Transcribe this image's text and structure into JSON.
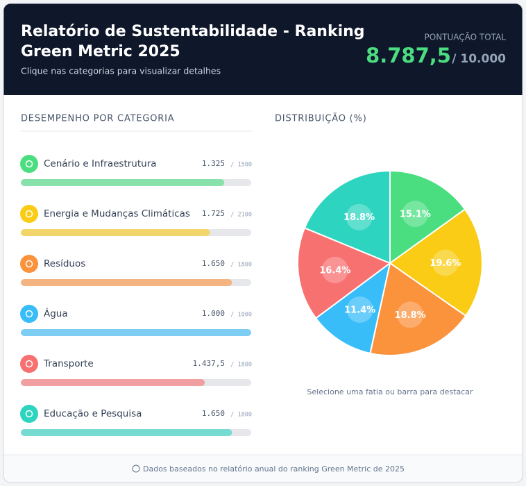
{
  "header": {
    "title_line1": "Relatório de Sustentabilidade - Ranking",
    "title_line2": "Green Metric 2025",
    "subtitle": "Clique nas categorias para visualizar detalhes",
    "total_label": "PONTUAÇÃO TOTAL",
    "total": {
      "value": 8787.5,
      "label": "8.787,5"
    },
    "total_max": {
      "value": 10000,
      "label": "/ 10.000"
    }
  },
  "panel": {
    "title": "DESEMPENHO POR CATEGORIA",
    "categories": [
      {
        "name": "Cenário e Infraestrutura",
        "score": {
          "value": 1325,
          "label": "1.325"
        },
        "max": {
          "value": 1500,
          "label": "/ 1500"
        },
        "color": "#4ade80"
      },
      {
        "name": "Energia e Mudanças Climáticas",
        "score": {
          "value": 1725,
          "label": "1.725"
        },
        "max": {
          "value": 2100,
          "label": "/ 2100"
        },
        "color": "#facc15"
      },
      {
        "name": "Resíduos",
        "score": {
          "value": 1650,
          "label": "1.650"
        },
        "max": {
          "value": 1800,
          "label": "/ 1800"
        },
        "color": "#fb923c"
      },
      {
        "name": "Água",
        "score": {
          "value": 1000,
          "label": "1.000"
        },
        "max": {
          "value": 1000,
          "label": "/ 1000"
        },
        "color": "#38bdf8"
      },
      {
        "name": "Transporte",
        "score": {
          "value": 1437.5,
          "label": "1.437,5"
        },
        "max": {
          "value": 1800,
          "label": "/ 1800"
        },
        "color": "#f87171"
      },
      {
        "name": "Educação e Pesquisa",
        "score": {
          "value": 1650,
          "label": "1.650"
        },
        "max": {
          "value": 1800,
          "label": "/ 1800"
        },
        "color": "#2dd4bf"
      }
    ]
  },
  "chart_data": {
    "type": "pie",
    "title": "DISTRIBUIÇÃO (%)",
    "values": [
      15.1,
      19.6,
      18.8,
      11.4,
      16.4,
      18.8
    ],
    "value_labels": [
      "15.1%",
      "19.6%",
      "18.8%",
      "11.4%",
      "16.4%",
      "18.8%"
    ],
    "colors": [
      "#4ade80",
      "#facc15",
      "#fb923c",
      "#38bdf8",
      "#f87171",
      "#2dd4bf"
    ],
    "note": "Selecione uma fatia ou barra para destacar"
  },
  "footer": {
    "text": "Dados baseados no relatório anual do ranking Green Metric de 2025"
  }
}
